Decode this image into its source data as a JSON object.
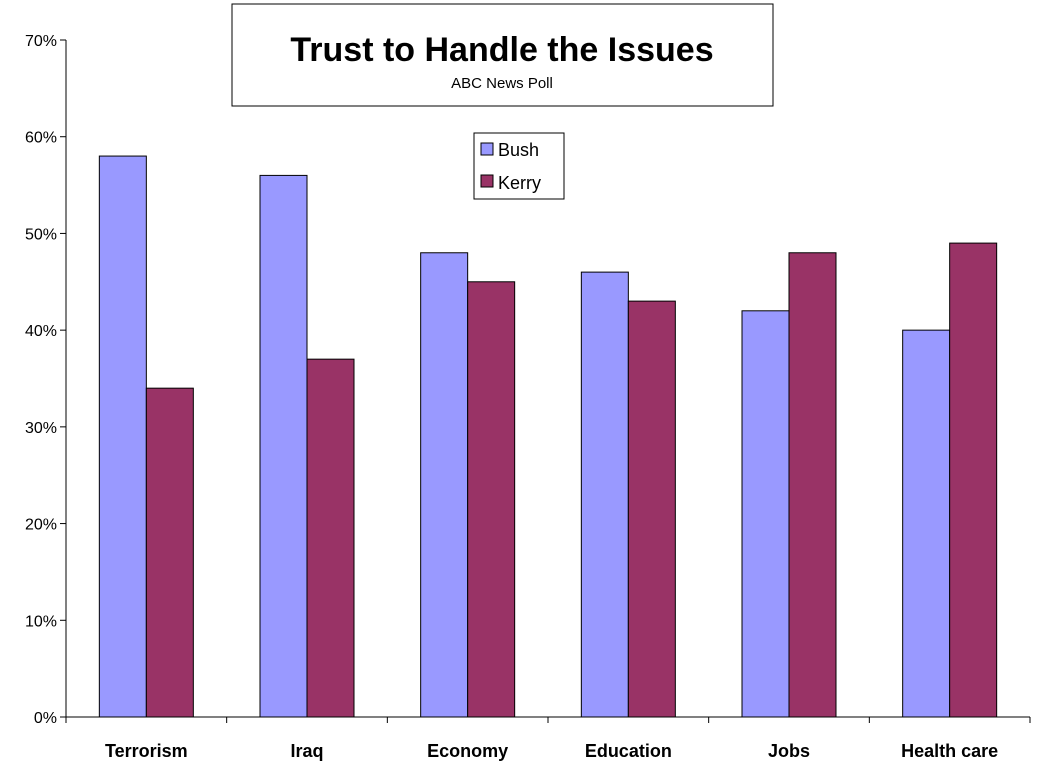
{
  "chart_data": {
    "type": "bar",
    "title": "Trust to Handle the Issues",
    "subtitle": "ABC News Poll",
    "xlabel": "",
    "ylabel": "",
    "categories": [
      "Terrorism",
      "Iraq",
      "Economy",
      "Education",
      "Jobs",
      "Health care"
    ],
    "series": [
      {
        "name": "Bush",
        "color": "#9999ff",
        "values": [
          58,
          56,
          48,
          46,
          42,
          40
        ]
      },
      {
        "name": "Kerry",
        "color": "#993366",
        "values": [
          34,
          37,
          45,
          43,
          48,
          49
        ]
      }
    ],
    "ylim": [
      0,
      70
    ],
    "yticks": [
      0,
      10,
      20,
      30,
      40,
      50,
      60,
      70
    ],
    "ytick_labels": [
      "0%",
      "10%",
      "20%",
      "30%",
      "40%",
      "50%",
      "60%",
      "70%"
    ],
    "grid": false,
    "legend_position": "top-center"
  }
}
